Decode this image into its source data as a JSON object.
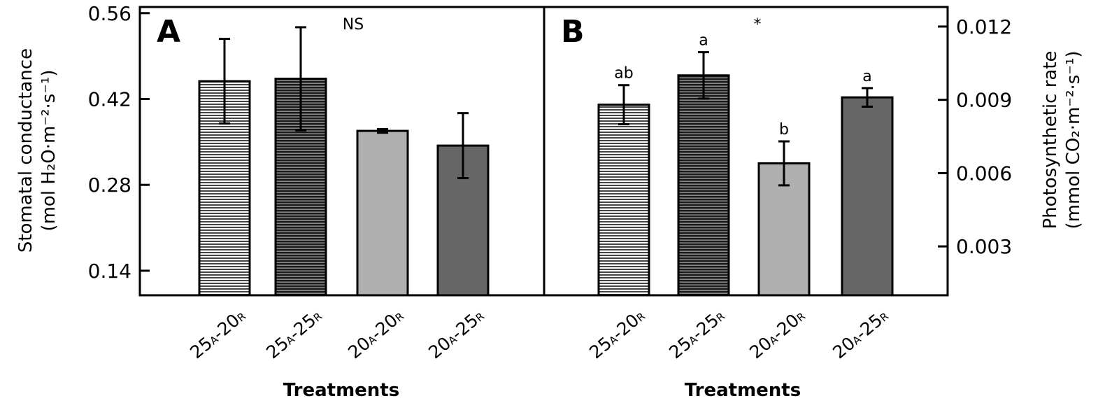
{
  "chart_data": [
    {
      "type": "bar",
      "panel_label": "A",
      "annotation": "NS",
      "ylabel_line1": "Stomatal conductance",
      "ylabel_line2": "(mol H₂O·m⁻²·s⁻¹)",
      "xlabel": "Treatments",
      "ylim": [
        0.1,
        0.57
      ],
      "yticks": [
        "0.56",
        "0.42",
        "0.28",
        "0.14"
      ],
      "ytick_values": [
        0.56,
        0.42,
        0.28,
        0.14
      ],
      "categories": [
        "25A-20R",
        "25A-25R",
        "20A-20R",
        "20A-25R"
      ],
      "category_parts": [
        {
          "a": "25",
          "a_sub": "A",
          "b": "20",
          "b_sub": "R"
        },
        {
          "a": "25",
          "a_sub": "A",
          "b": "25",
          "b_sub": "R"
        },
        {
          "a": "20",
          "a_sub": "A",
          "b": "20",
          "b_sub": "R"
        },
        {
          "a": "20",
          "a_sub": "A",
          "b": "25",
          "b_sub": "R"
        }
      ],
      "values": [
        0.449,
        0.453,
        0.368,
        0.344
      ],
      "errors": [
        0.069,
        0.084,
        0.003,
        0.053
      ],
      "letters": [
        "",
        "",
        "",
        ""
      ],
      "fills": [
        "#555555",
        "#333333",
        "#b0b0b0",
        "#666666"
      ],
      "hatched": [
        true,
        true,
        false,
        false
      ]
    },
    {
      "type": "bar",
      "panel_label": "B",
      "annotation": "*",
      "ylabel_line1": "Photosynthetic rate",
      "ylabel_line2": "(mmol CO₂·m⁻²·s⁻¹)",
      "xlabel": "Treatments",
      "ylim": [
        0.001,
        0.0128
      ],
      "yticks": [
        "0.012",
        "0.009",
        "0.006",
        "0.003"
      ],
      "ytick_values": [
        0.012,
        0.009,
        0.006,
        0.003
      ],
      "categories": [
        "25A-20R",
        "25A-25R",
        "20A-20R",
        "20A-25R"
      ],
      "category_parts": [
        {
          "a": "25",
          "a_sub": "A",
          "b": "20",
          "b_sub": "R"
        },
        {
          "a": "25",
          "a_sub": "A",
          "b": "25",
          "b_sub": "R"
        },
        {
          "a": "20",
          "a_sub": "A",
          "b": "20",
          "b_sub": "R"
        },
        {
          "a": "20",
          "a_sub": "A",
          "b": "25",
          "b_sub": "R"
        }
      ],
      "values": [
        0.0088,
        0.01,
        0.0064,
        0.0091
      ],
      "errors": [
        0.0008,
        0.00095,
        0.0009,
        0.00038
      ],
      "letters": [
        "ab",
        "a",
        "b",
        "a"
      ],
      "fills": [
        "#555555",
        "#333333",
        "#b0b0b0",
        "#666666"
      ],
      "hatched": [
        true,
        true,
        false,
        false
      ]
    }
  ]
}
